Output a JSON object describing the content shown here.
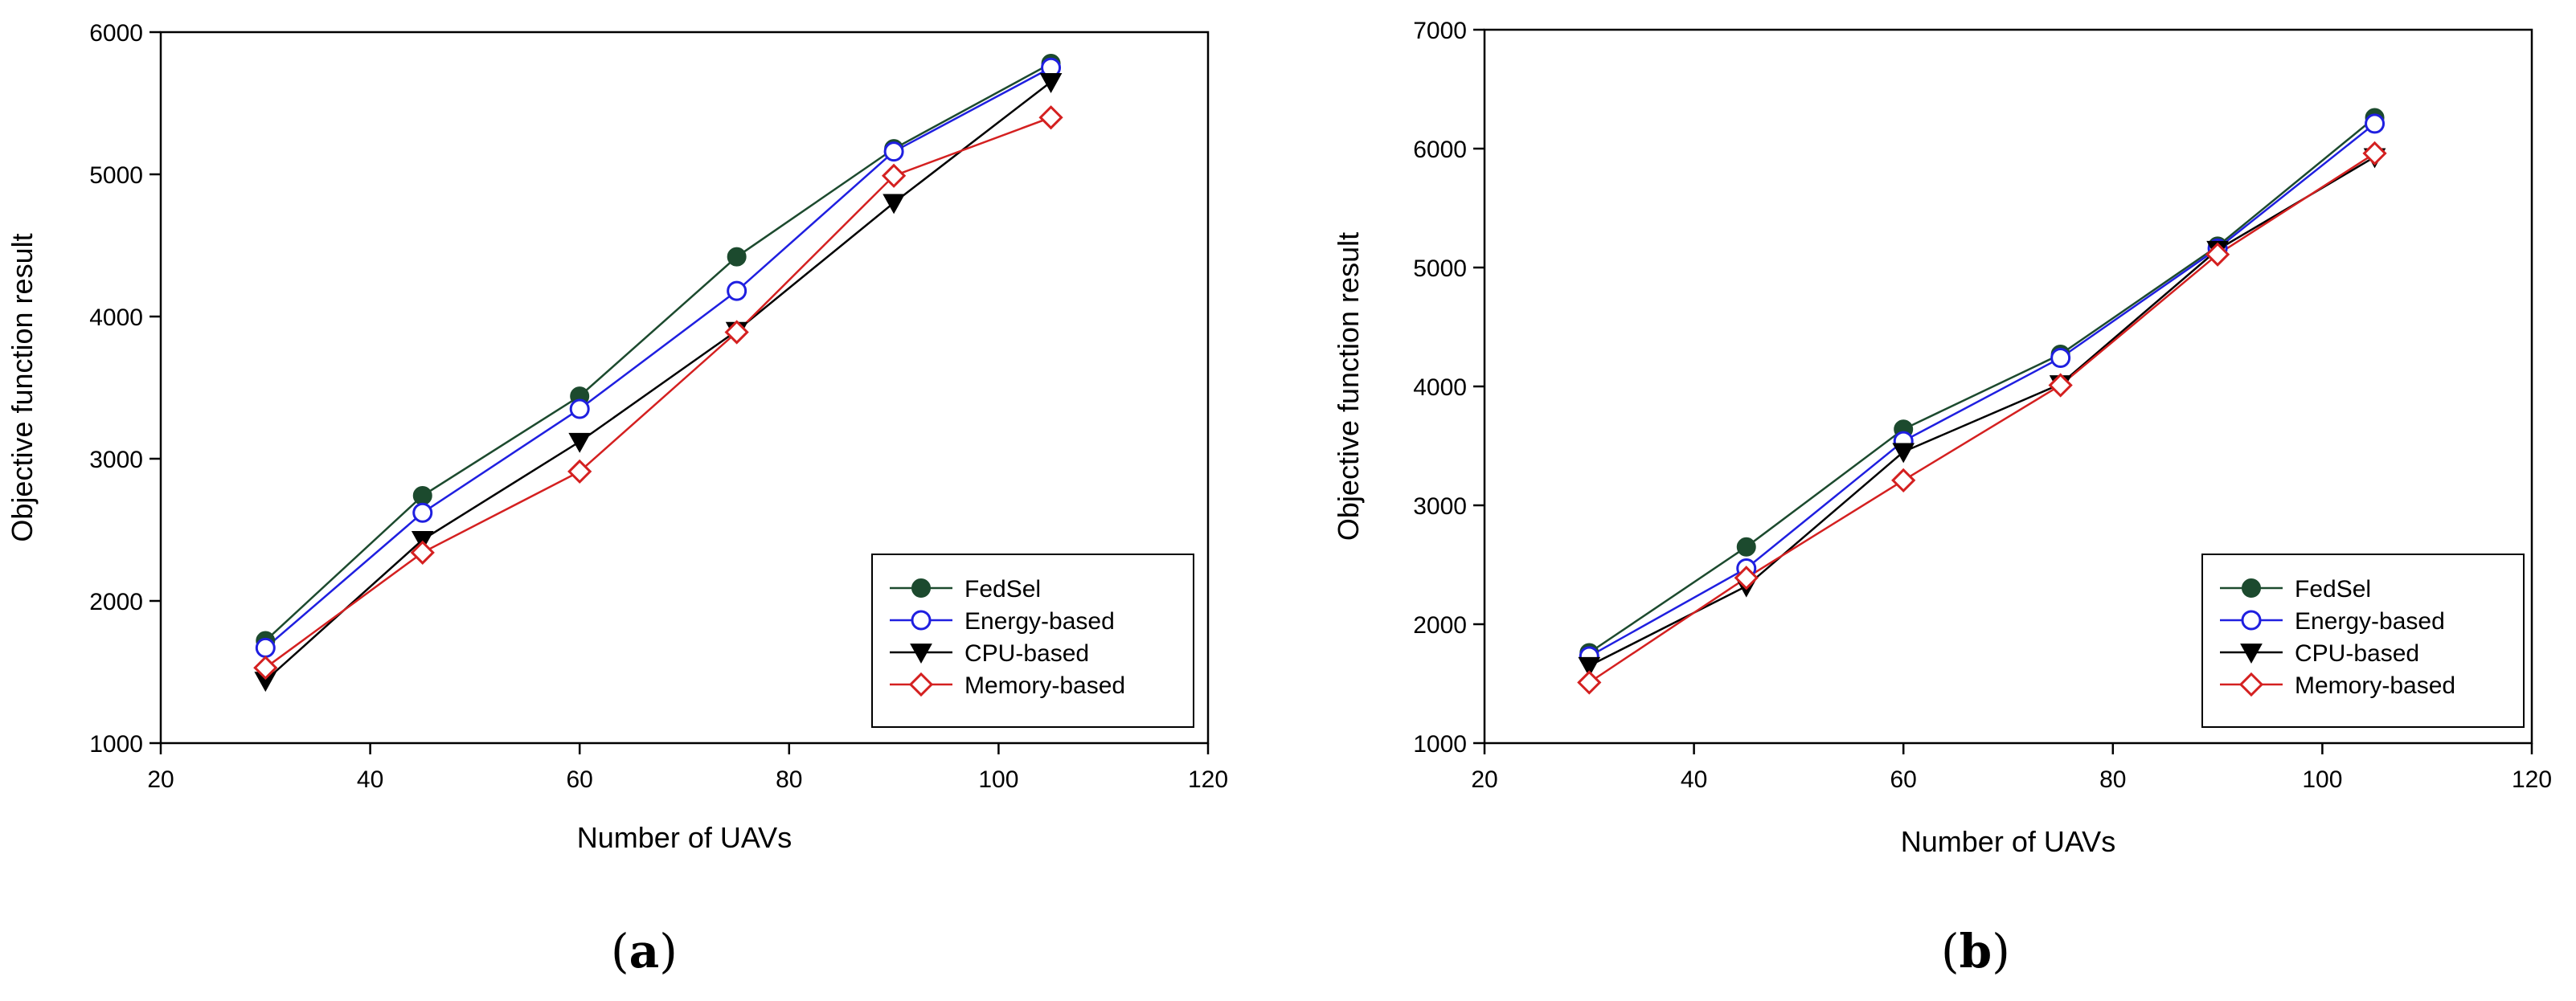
{
  "panels": [
    {
      "label_open": "(",
      "label_letter": "a",
      "label_close": ")"
    },
    {
      "label_open": "(",
      "label_letter": "b",
      "label_close": ")"
    }
  ],
  "chart_data": [
    {
      "type": "line",
      "title": "",
      "xlabel": "Number of UAVs",
      "ylabel": "Objective function result",
      "xlim": [
        20,
        120
      ],
      "ylim": [
        1000,
        6000
      ],
      "xticks": [
        20,
        40,
        60,
        80,
        100,
        120
      ],
      "yticks": [
        1000,
        2000,
        3000,
        4000,
        5000,
        6000
      ],
      "grid": false,
      "legend_position": "bottom-right",
      "x": [
        30,
        45,
        60,
        75,
        90,
        105
      ],
      "series": [
        {
          "name": "FedSel",
          "color": "#1c4a2e",
          "marker": "filled-circle",
          "values": [
            1720,
            2740,
            3440,
            4420,
            5180,
            5780
          ]
        },
        {
          "name": "Energy-based",
          "color": "#1f1fe0",
          "marker": "open-circle",
          "values": [
            1670,
            2620,
            3350,
            4180,
            5160,
            5750
          ]
        },
        {
          "name": "CPU-based",
          "color": "#000000",
          "marker": "filled-triangle-down",
          "values": [
            1440,
            2430,
            3120,
            3900,
            4800,
            5650
          ]
        },
        {
          "name": "Memory-based",
          "color": "#d42020",
          "marker": "open-diamond",
          "values": [
            1530,
            2340,
            2910,
            3890,
            4990,
            5400
          ]
        }
      ]
    },
    {
      "type": "line",
      "title": "",
      "xlabel": "Number of UAVs",
      "ylabel": "Objective function result",
      "xlim": [
        20,
        120
      ],
      "ylim": [
        1000,
        7000
      ],
      "xticks": [
        20,
        40,
        60,
        80,
        100,
        120
      ],
      "yticks": [
        1000,
        2000,
        3000,
        4000,
        5000,
        6000,
        7000
      ],
      "grid": false,
      "legend_position": "bottom-right",
      "x": [
        30,
        45,
        60,
        75,
        90,
        105
      ],
      "series": [
        {
          "name": "FedSel",
          "color": "#1c4a2e",
          "marker": "filled-circle",
          "values": [
            1760,
            2650,
            3640,
            4270,
            5180,
            6260
          ]
        },
        {
          "name": "Energy-based",
          "color": "#1f1fe0",
          "marker": "open-circle",
          "values": [
            1730,
            2470,
            3540,
            4240,
            5160,
            6210
          ]
        },
        {
          "name": "CPU-based",
          "color": "#000000",
          "marker": "filled-triangle-down",
          "values": [
            1650,
            2320,
            3450,
            4020,
            5150,
            5930
          ]
        },
        {
          "name": "Memory-based",
          "color": "#d42020",
          "marker": "open-diamond",
          "values": [
            1510,
            2390,
            3210,
            4010,
            5110,
            5960
          ]
        }
      ]
    }
  ]
}
